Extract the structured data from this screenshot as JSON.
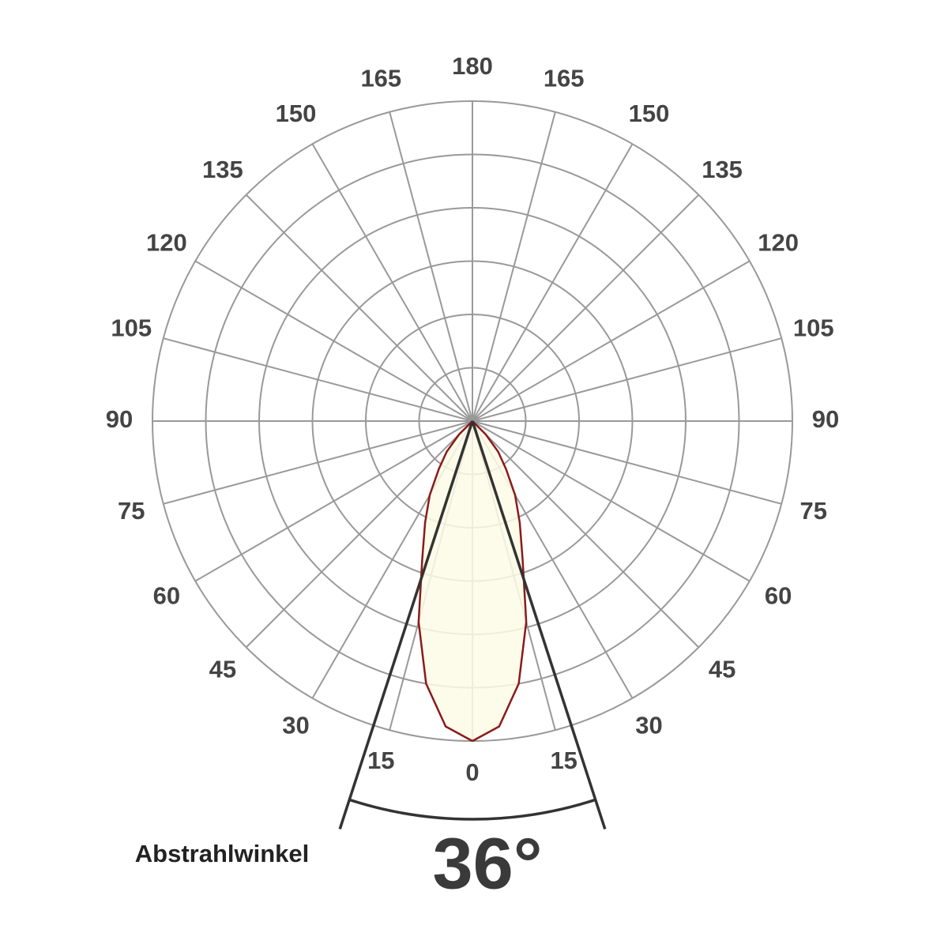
{
  "chart_data": {
    "type": "polar",
    "angle_ticks": [
      0,
      15,
      30,
      45,
      60,
      75,
      90,
      105,
      120,
      135,
      150,
      165,
      180
    ],
    "rlim": [
      0,
      6
    ],
    "rticks": [
      1,
      2,
      3,
      4,
      5,
      6
    ],
    "x": [
      0,
      5,
      10,
      15,
      20,
      25,
      30,
      35,
      40,
      45,
      50
    ],
    "values": [
      6.0,
      5.75,
      5.0,
      3.9,
      2.75,
      2.1,
      1.6,
      1.1,
      0.75,
      0.35,
      0
    ],
    "color": "#8b1a1a",
    "fill": "#fdfbe6",
    "grid_color": "#999999",
    "beam_angle": {
      "value": 36,
      "label": "36°"
    },
    "beam_label": "Abstrahlwinkel"
  }
}
